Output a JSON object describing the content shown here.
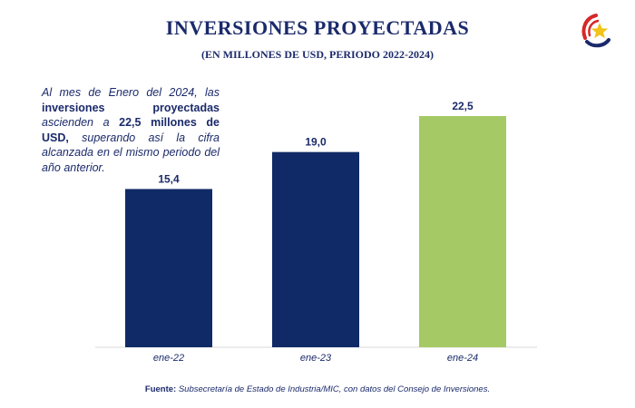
{
  "title": "INVERSIONES PROYECTADAS",
  "subtitle": "(EN MILLONES DE USD, PERIODO 2022-2024)",
  "note": {
    "part1": "Al mes de Enero del 2024, las",
    "part2": "inversiones proyectadas",
    "part3": "ascienden a",
    "part4": "22,5 millones de USD,",
    "part5": "superando así la cifra alcanzada en el mismo periodo del año anterior."
  },
  "source": {
    "label": "Fuente:",
    "text": "Subsecretaría de Estado de Industria/MIC, con datos del Consejo de Inversiones."
  },
  "logo_icon": "paraguay-star-seal-icon",
  "chart_data": {
    "type": "bar",
    "categories": [
      "ene-22",
      "ene-23",
      "ene-24"
    ],
    "values": [
      15.4,
      19.0,
      22.5
    ],
    "value_labels": [
      "15,4",
      "19,0",
      "22,5"
    ],
    "colors": [
      "#0f2a66",
      "#0f2a66",
      "#a5c965"
    ],
    "ylim": [
      0,
      22.5
    ],
    "grid": false,
    "legend": "none"
  }
}
